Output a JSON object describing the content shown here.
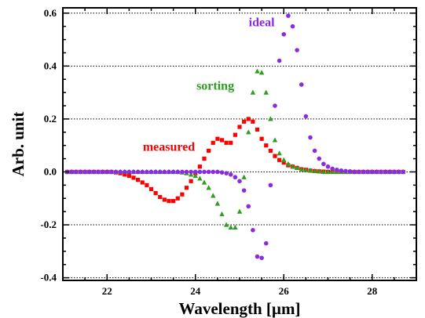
{
  "chart_data": {
    "type": "scatter",
    "title": "",
    "xlabel": "Wavelength [µm]",
    "ylabel": "Arb. unit",
    "xlim": [
      21,
      29
    ],
    "ylim": [
      -0.41,
      0.62
    ],
    "x_ticks": [
      22,
      24,
      26,
      28
    ],
    "x_tick_labels": [
      "22",
      "24",
      "26",
      "28"
    ],
    "y_ticks": [
      -0.4,
      -0.2,
      0.0,
      0.2,
      0.4,
      0.6
    ],
    "y_tick_labels": [
      "-0.4",
      "-0.2",
      "0.0",
      "0.2",
      "0.4",
      "0.6"
    ],
    "grid": "horizontal dotted",
    "legend": "none (series labelled inline)",
    "series": [
      {
        "name": "measured",
        "color": "#ff0000",
        "marker": "square",
        "label_position": {
          "x": 23.4,
          "y": 0.08
        },
        "x": [
          21.1,
          21.2,
          21.3,
          21.4,
          21.5,
          21.6,
          21.7,
          21.8,
          21.9,
          22.0,
          22.1,
          22.2,
          22.3,
          22.4,
          22.5,
          22.6,
          22.7,
          22.8,
          22.9,
          23.0,
          23.1,
          23.2,
          23.3,
          23.4,
          23.5,
          23.6,
          23.7,
          23.8,
          23.9,
          24.0,
          24.1,
          24.2,
          24.3,
          24.4,
          24.5,
          24.6,
          24.7,
          24.8,
          24.9,
          25.0,
          25.1,
          25.2,
          25.3,
          25.4,
          25.5,
          25.6,
          25.7,
          25.8,
          25.9,
          26.0,
          26.1,
          26.2,
          26.3,
          26.4,
          26.5,
          26.6,
          26.7,
          26.8,
          26.9,
          27.0,
          27.1,
          27.2,
          27.3,
          27.4,
          27.5,
          27.6,
          27.7,
          27.8,
          27.9,
          28.0,
          28.1,
          28.2,
          28.3,
          28.4,
          28.5,
          28.6,
          28.7
        ],
        "y": [
          0.0,
          0.0,
          0.0,
          0.0,
          0.0,
          0.0,
          0.0,
          0.0,
          0.0,
          0.0,
          0.0,
          -0.002,
          -0.005,
          -0.01,
          -0.015,
          -0.022,
          -0.03,
          -0.04,
          -0.05,
          -0.065,
          -0.08,
          -0.095,
          -0.105,
          -0.11,
          -0.11,
          -0.1,
          -0.085,
          -0.06,
          -0.035,
          -0.005,
          0.02,
          0.05,
          0.08,
          0.11,
          0.125,
          0.12,
          0.11,
          0.11,
          0.14,
          0.17,
          0.19,
          0.2,
          0.19,
          0.16,
          0.125,
          0.1,
          0.08,
          0.06,
          0.045,
          0.035,
          0.025,
          0.02,
          0.015,
          0.01,
          0.008,
          0.005,
          0.003,
          0.002,
          0.001,
          0.0,
          0.0,
          0.0,
          0.0,
          0.0,
          0.0,
          0.0,
          0.0,
          0.0,
          0.0,
          0.0,
          0.0,
          0.0,
          0.0,
          0.0,
          0.0,
          0.0,
          0.0
        ]
      },
      {
        "name": "sorting",
        "color": "#2e9e1f",
        "marker": "triangle",
        "label_position": {
          "x": 24.45,
          "y": 0.31
        },
        "x": [
          21.1,
          21.2,
          21.3,
          21.4,
          21.5,
          21.6,
          21.7,
          21.8,
          21.9,
          22.0,
          22.1,
          22.2,
          22.3,
          22.4,
          22.5,
          22.6,
          22.7,
          22.8,
          22.9,
          23.0,
          23.1,
          23.2,
          23.3,
          23.4,
          23.5,
          23.6,
          23.7,
          23.8,
          23.9,
          24.0,
          24.1,
          24.2,
          24.3,
          24.4,
          24.5,
          24.6,
          24.7,
          24.8,
          24.9,
          25.0,
          25.1,
          25.2,
          25.3,
          25.4,
          25.5,
          25.6,
          25.7,
          25.8,
          25.9,
          26.0,
          26.1,
          26.2,
          26.3,
          26.4,
          26.5,
          26.6,
          26.7,
          26.8,
          26.9,
          27.0,
          27.1,
          27.2,
          27.3,
          27.4,
          27.5,
          27.6,
          27.7,
          27.8,
          27.9,
          28.0,
          28.1,
          28.2,
          28.3,
          28.4,
          28.5,
          28.6,
          28.7
        ],
        "y": [
          0.0,
          0.0,
          0.0,
          0.0,
          0.0,
          0.0,
          0.0,
          0.0,
          0.0,
          0.0,
          0.0,
          0.0,
          0.0,
          0.0,
          0.0,
          0.0,
          0.0,
          0.0,
          0.0,
          0.0,
          0.0,
          0.0,
          0.0,
          0.0,
          0.0,
          0.0,
          -0.002,
          -0.005,
          -0.01,
          -0.015,
          -0.025,
          -0.04,
          -0.06,
          -0.09,
          -0.12,
          -0.16,
          -0.2,
          -0.21,
          -0.21,
          -0.15,
          -0.02,
          0.15,
          0.3,
          0.38,
          0.375,
          0.3,
          0.2,
          0.12,
          0.07,
          0.045,
          0.03,
          0.02,
          0.015,
          0.01,
          0.007,
          0.005,
          0.003,
          0.002,
          0.0,
          0.0,
          0.0,
          0.0,
          0.0,
          0.0,
          0.0,
          0.0,
          0.0,
          0.0,
          0.0,
          0.0,
          0.0,
          0.0,
          0.0,
          0.0,
          0.0,
          0.0,
          0.0
        ]
      },
      {
        "name": "ideal",
        "color": "#8a2be2",
        "marker": "circle",
        "label_position": {
          "x": 25.5,
          "y": 0.55
        },
        "x": [
          21.1,
          21.2,
          21.3,
          21.4,
          21.5,
          21.6,
          21.7,
          21.8,
          21.9,
          22.0,
          22.1,
          22.2,
          22.3,
          22.4,
          22.5,
          22.6,
          22.7,
          22.8,
          22.9,
          23.0,
          23.1,
          23.2,
          23.3,
          23.4,
          23.5,
          23.6,
          23.7,
          23.8,
          23.9,
          24.0,
          24.1,
          24.2,
          24.3,
          24.4,
          24.5,
          24.6,
          24.7,
          24.8,
          24.9,
          25.0,
          25.1,
          25.2,
          25.3,
          25.4,
          25.5,
          25.6,
          25.7,
          25.8,
          25.9,
          26.0,
          26.1,
          26.2,
          26.3,
          26.4,
          26.5,
          26.6,
          26.7,
          26.8,
          26.9,
          27.0,
          27.1,
          27.2,
          27.3,
          27.4,
          27.5,
          27.6,
          27.7,
          27.8,
          27.9,
          28.0,
          28.1,
          28.2,
          28.3,
          28.4,
          28.5,
          28.6,
          28.7
        ],
        "y": [
          0.0,
          0.0,
          0.0,
          0.0,
          0.0,
          0.0,
          0.0,
          0.0,
          0.0,
          0.0,
          0.0,
          0.0,
          0.0,
          0.0,
          0.0,
          0.0,
          0.0,
          0.0,
          0.0,
          0.0,
          0.0,
          0.0,
          0.0,
          0.0,
          0.0,
          0.0,
          0.0,
          0.0,
          0.0,
          0.0,
          0.0,
          0.0,
          0.0,
          0.0,
          0.0,
          -0.002,
          -0.005,
          -0.01,
          -0.02,
          -0.035,
          -0.07,
          -0.13,
          -0.22,
          -0.32,
          -0.325,
          -0.27,
          -0.05,
          0.25,
          0.42,
          0.52,
          0.59,
          0.55,
          0.46,
          0.33,
          0.21,
          0.13,
          0.08,
          0.05,
          0.03,
          0.02,
          0.012,
          0.008,
          0.005,
          0.003,
          0.002,
          0.0,
          0.0,
          0.0,
          0.0,
          0.0,
          0.0,
          0.0,
          0.0,
          0.0,
          0.0,
          0.0,
          0.0
        ]
      }
    ]
  }
}
